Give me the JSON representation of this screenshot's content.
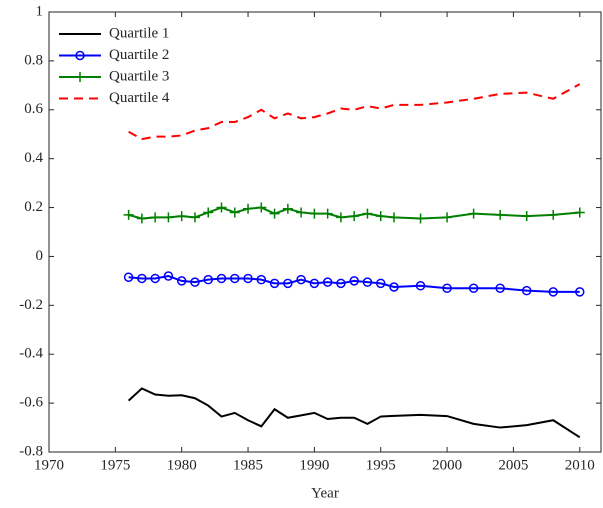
{
  "chart_data": {
    "type": "line",
    "x_label": "Year",
    "x": [
      1976,
      1977,
      1978,
      1979,
      1980,
      1981,
      1982,
      1983,
      1984,
      1985,
      1986,
      1987,
      1988,
      1989,
      1990,
      1991,
      1992,
      1993,
      1994,
      1995,
      1996,
      1998,
      2000,
      2002,
      2004,
      2006,
      2008,
      2010
    ],
    "xlim": [
      1970,
      2011.6
    ],
    "xticks": [
      1970,
      1975,
      1980,
      1985,
      1990,
      1995,
      2000,
      2005,
      2010
    ],
    "ylim": [
      -0.8,
      1
    ],
    "yticks": [
      -0.8,
      -0.6,
      -0.4,
      -0.2,
      0,
      0.2,
      0.4,
      0.6,
      0.8,
      1
    ],
    "legend": "upper-left",
    "series": [
      {
        "name": "Quartile 1",
        "color": "#000000",
        "linestyle": "solid",
        "marker": "none",
        "values": [
          -0.59,
          -0.54,
          -0.565,
          -0.57,
          -0.568,
          -0.58,
          -0.61,
          -0.655,
          -0.64,
          -0.67,
          -0.695,
          -0.625,
          -0.66,
          -0.65,
          -0.64,
          -0.665,
          -0.66,
          -0.66,
          -0.685,
          -0.655,
          -0.652,
          -0.648,
          -0.653,
          -0.685,
          -0.7,
          -0.69,
          -0.67,
          -0.74
        ]
      },
      {
        "name": "Quartile 2",
        "color": "#0000ff",
        "linestyle": "solid",
        "marker": "circle",
        "values": [
          -0.085,
          -0.09,
          -0.09,
          -0.08,
          -0.1,
          -0.105,
          -0.095,
          -0.09,
          -0.09,
          -0.09,
          -0.095,
          -0.11,
          -0.11,
          -0.095,
          -0.11,
          -0.105,
          -0.11,
          -0.1,
          -0.105,
          -0.11,
          -0.125,
          -0.12,
          -0.13,
          -0.13,
          -0.13,
          -0.14,
          -0.145,
          -0.145
        ]
      },
      {
        "name": "Quartile 3",
        "color": "#008000",
        "linestyle": "solid",
        "marker": "plus",
        "values": [
          0.17,
          0.155,
          0.16,
          0.16,
          0.165,
          0.16,
          0.18,
          0.2,
          0.18,
          0.195,
          0.2,
          0.175,
          0.195,
          0.18,
          0.175,
          0.175,
          0.16,
          0.165,
          0.175,
          0.165,
          0.16,
          0.155,
          0.16,
          0.175,
          0.17,
          0.165,
          0.17,
          0.18
        ]
      },
      {
        "name": "Quartile 4",
        "color": "#ff0000",
        "linestyle": "dashed",
        "marker": "none",
        "values": [
          0.51,
          0.48,
          0.49,
          0.49,
          0.495,
          0.515,
          0.525,
          0.55,
          0.55,
          0.57,
          0.6,
          0.565,
          0.585,
          0.565,
          0.57,
          0.585,
          0.605,
          0.6,
          0.615,
          0.605,
          0.62,
          0.62,
          0.63,
          0.645,
          0.665,
          0.67,
          0.645,
          0.705
        ]
      }
    ]
  }
}
